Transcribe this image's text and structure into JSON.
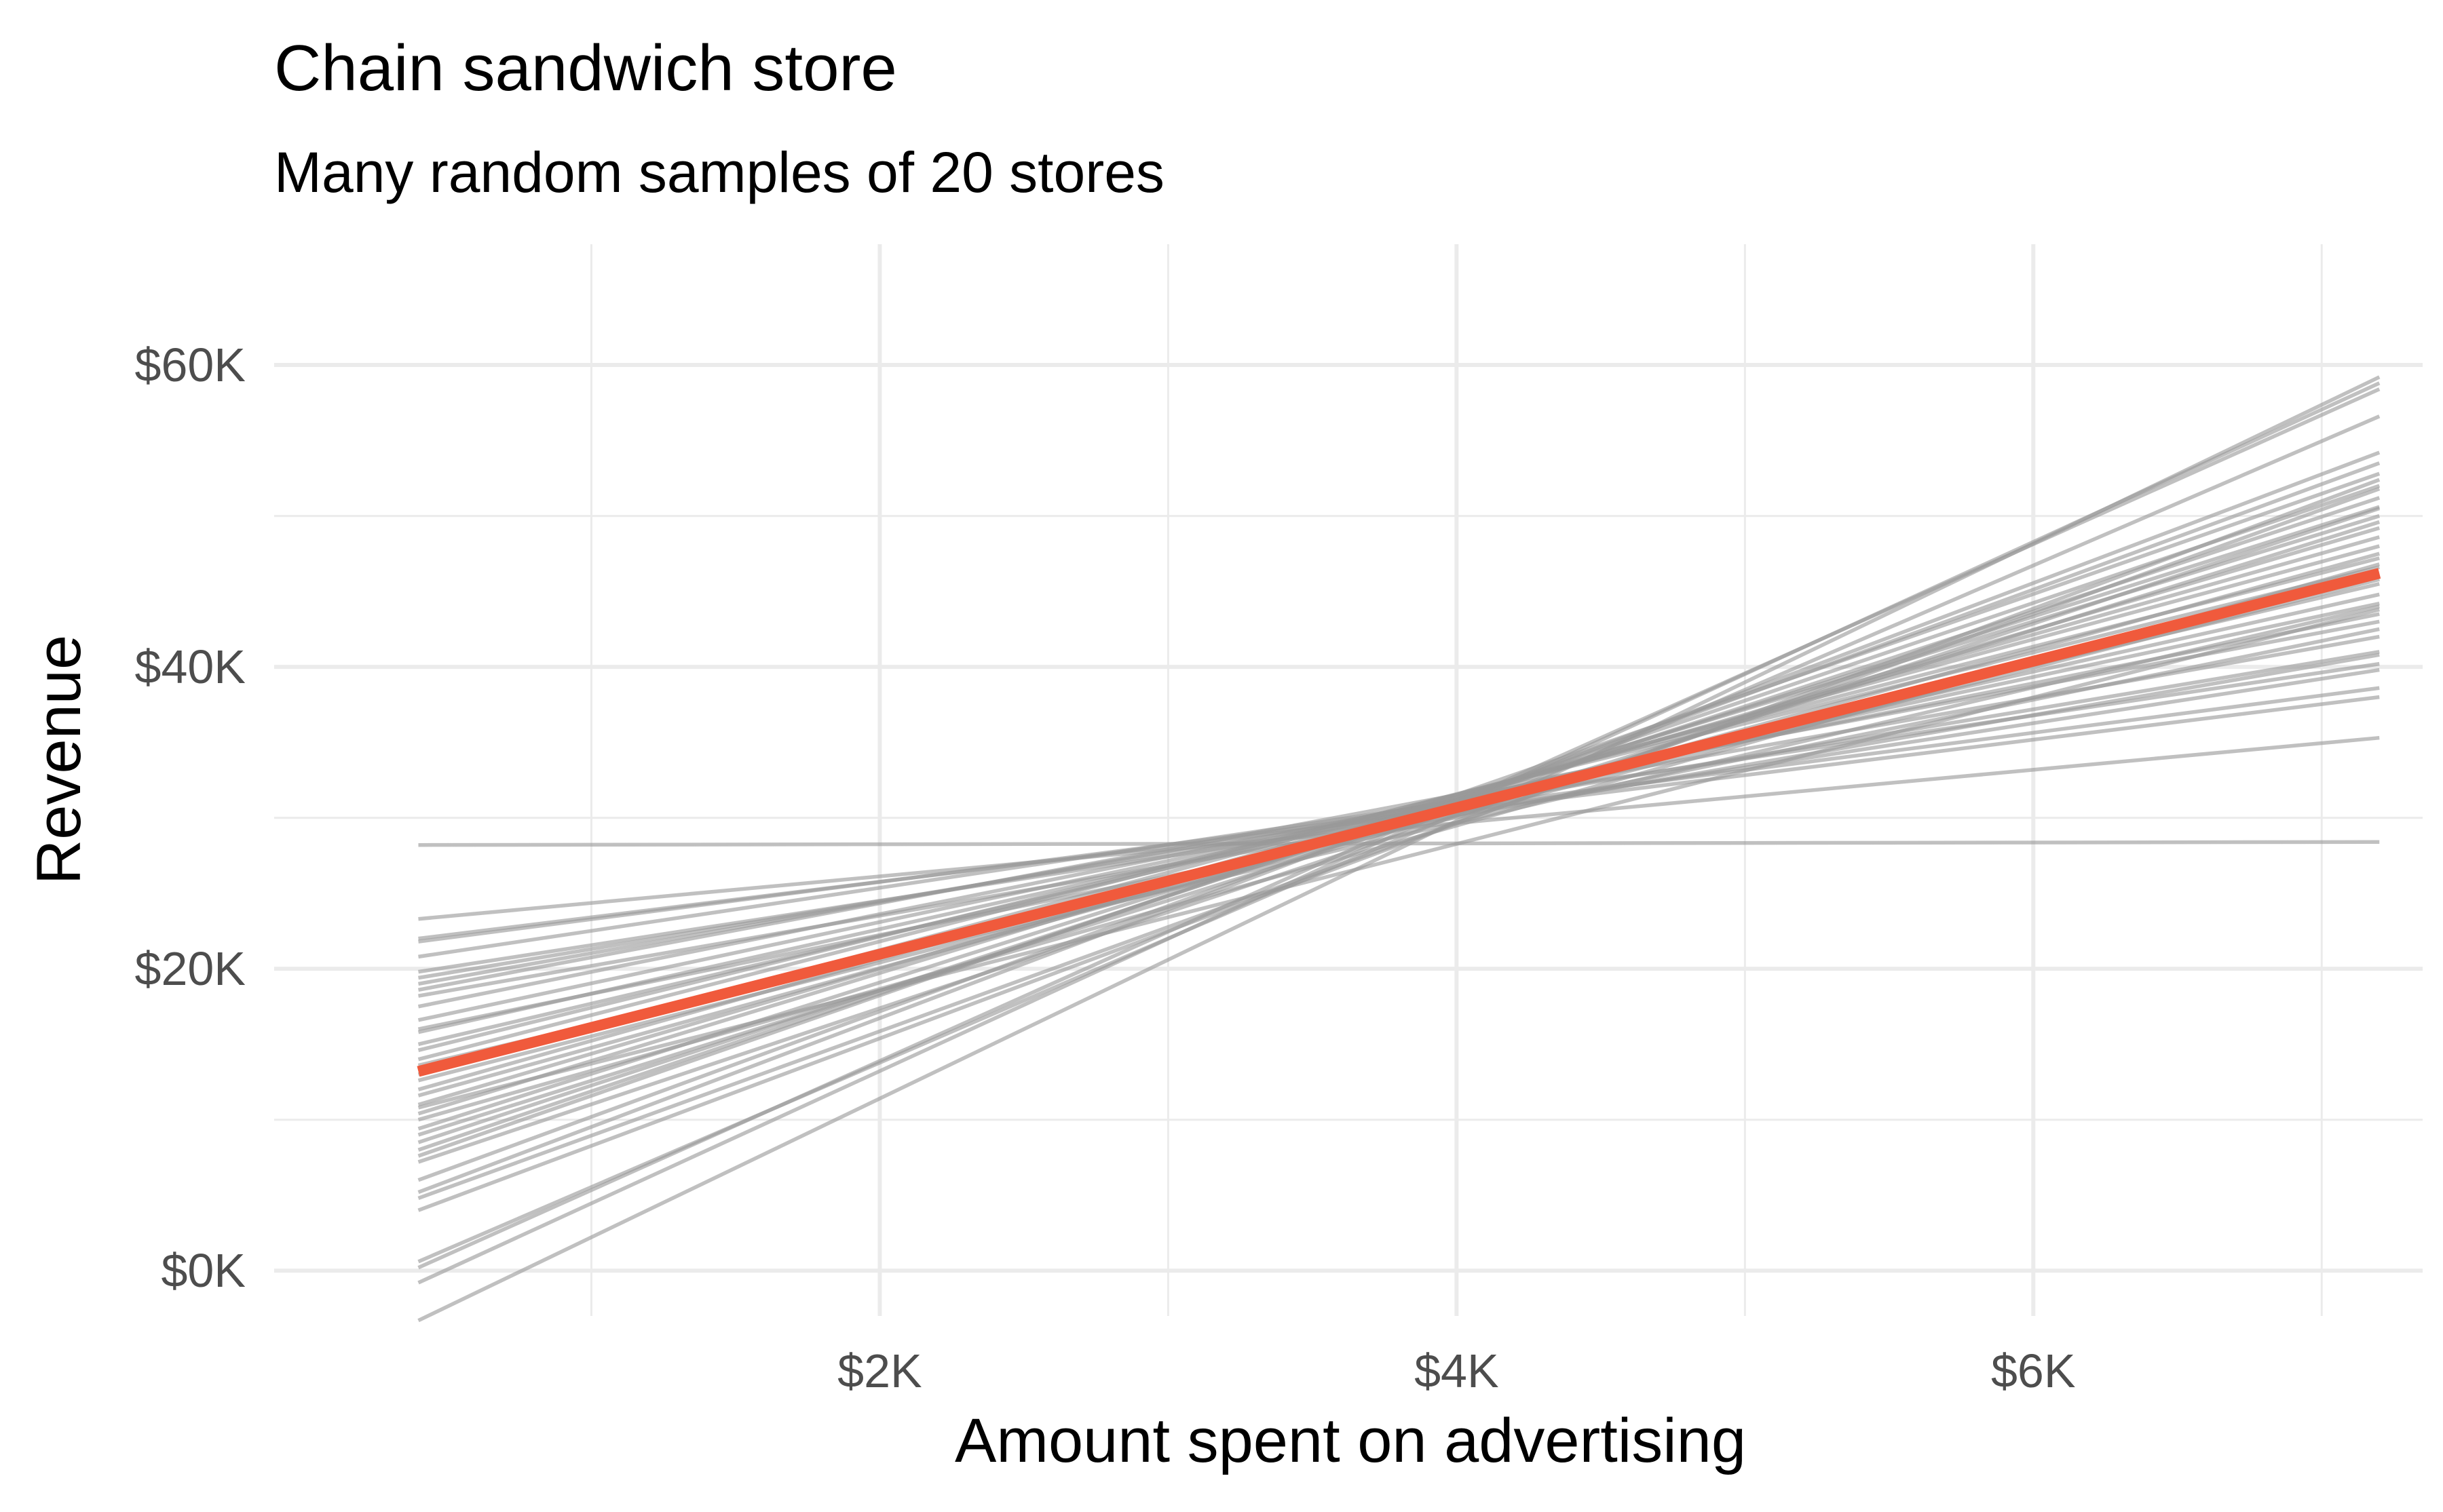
{
  "chart_data": {
    "type": "line",
    "title": "Chain sandwich store",
    "subtitle": "Many random samples of 20 stores",
    "xlabel": "Amount spent on advertising",
    "ylabel": "Revenue",
    "xlim": [
      -100,
      7350
    ],
    "ylim": [
      -3000,
      68000
    ],
    "x_range": [
      400,
      7200
    ],
    "x_ticks": [
      {
        "value": 2000,
        "label": "$2K"
      },
      {
        "value": 4000,
        "label": "$4K"
      },
      {
        "value": 6000,
        "label": "$6K"
      }
    ],
    "y_ticks": [
      {
        "value": 0,
        "label": "$0K"
      },
      {
        "value": 20000,
        "label": "$20K"
      },
      {
        "value": 40000,
        "label": "$40K"
      },
      {
        "value": 60000,
        "label": "$60K"
      }
    ],
    "x_minor_gridlines": [
      1000,
      3000,
      5000,
      7000
    ],
    "y_minor_gridlines": [
      10000,
      30000,
      50000
    ],
    "grid": true,
    "legend": "none",
    "colors": {
      "sample_lines": "#9a9a9a",
      "population_line": "#f05a3c",
      "grid": "#ebebeb"
    },
    "population_line": {
      "x": [
        400,
        7200
      ],
      "y": [
        13200,
        46200
      ]
    },
    "sample_lines": [
      {
        "y_start": 28200,
        "y_end": 28400
      },
      {
        "y_start": 23300,
        "y_end": 35300
      },
      {
        "y_start": 22000,
        "y_end": 38000
      },
      {
        "y_start": 21800,
        "y_end": 38600
      },
      {
        "y_start": 20800,
        "y_end": 40200
      },
      {
        "y_start": 19400,
        "y_end": 41000
      },
      {
        "y_start": 19000,
        "y_end": 42000
      },
      {
        "y_start": 18600,
        "y_end": 43000
      },
      {
        "y_start": 18200,
        "y_end": 40800
      },
      {
        "y_start": 17500,
        "y_end": 43500
      },
      {
        "y_start": 16600,
        "y_end": 44200
      },
      {
        "y_start": 15800,
        "y_end": 44800
      },
      {
        "y_start": 15000,
        "y_end": 45500
      },
      {
        "y_start": 14600,
        "y_end": 46600
      },
      {
        "y_start": 14000,
        "y_end": 47200
      },
      {
        "y_start": 13000,
        "y_end": 48000
      },
      {
        "y_start": 12600,
        "y_end": 45800
      },
      {
        "y_start": 12000,
        "y_end": 48600
      },
      {
        "y_start": 11600,
        "y_end": 47500
      },
      {
        "y_start": 11000,
        "y_end": 49200
      },
      {
        "y_start": 10400,
        "y_end": 50000
      },
      {
        "y_start": 10000,
        "y_end": 46800
      },
      {
        "y_start": 9400,
        "y_end": 50600
      },
      {
        "y_start": 9000,
        "y_end": 49600
      },
      {
        "y_start": 8500,
        "y_end": 51200
      },
      {
        "y_start": 8000,
        "y_end": 52000
      },
      {
        "y_start": 7600,
        "y_end": 52800
      },
      {
        "y_start": 7200,
        "y_end": 50500
      },
      {
        "y_start": 6000,
        "y_end": 53500
      },
      {
        "y_start": 5200,
        "y_end": 54200
      },
      {
        "y_start": 4800,
        "y_end": 51800
      },
      {
        "y_start": 4000,
        "y_end": 52400
      },
      {
        "y_start": 600,
        "y_end": 56600
      },
      {
        "y_start": 200,
        "y_end": 58400
      },
      {
        "y_start": -800,
        "y_end": 58800
      },
      {
        "y_start": -3300,
        "y_end": 59200
      },
      {
        "y_start": 10800,
        "y_end": 43800
      },
      {
        "y_start": 16000,
        "y_end": 42500
      },
      {
        "y_start": 19800,
        "y_end": 39800
      },
      {
        "y_start": 13600,
        "y_end": 44000
      }
    ]
  }
}
